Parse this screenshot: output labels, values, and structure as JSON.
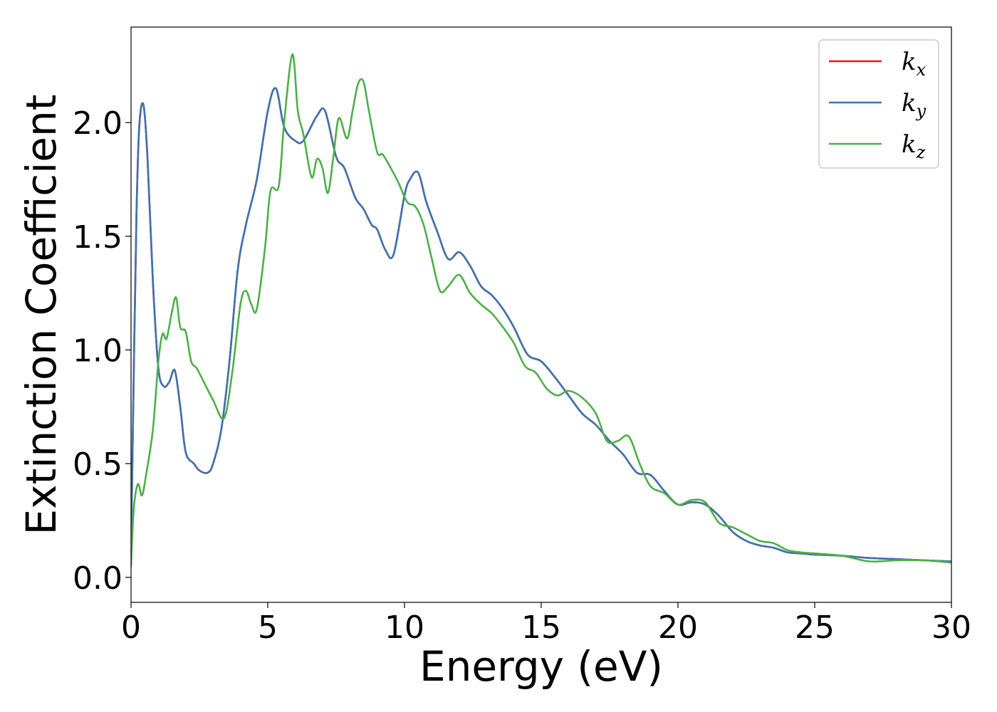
{
  "chart_data": {
    "type": "line",
    "xlabel": "Energy (eV)",
    "ylabel": "Extinction Coefficient",
    "xlim": [
      0,
      30
    ],
    "ylim": [
      -0.11,
      2.42
    ],
    "xticks": [
      "0",
      "5",
      "10",
      "15",
      "20",
      "25",
      "30"
    ],
    "yticks": [
      "0.0",
      "0.5",
      "1.0",
      "1.5",
      "2.0"
    ],
    "grid": false,
    "legend_position": "top-right",
    "series": [
      {
        "name": "k_x",
        "label_main": "k",
        "label_sub": "x",
        "color": "#e41a1c",
        "x": [
          0,
          0.1,
          0.2,
          0.3,
          0.45,
          0.6,
          0.8,
          1.0,
          1.2,
          1.4,
          1.6,
          1.8,
          2.0,
          2.3,
          2.5,
          2.8,
          3.0,
          3.3,
          3.6,
          3.9,
          4.2,
          4.6,
          5.0,
          5.3,
          5.6,
          6.0,
          6.3,
          6.8,
          7.1,
          7.5,
          7.8,
          8.2,
          8.5,
          8.8,
          9.0,
          9.3,
          9.6,
          10.0,
          10.2,
          10.5,
          10.8,
          11.2,
          11.6,
          12.0,
          12.4,
          12.8,
          13.2,
          13.6,
          14.0,
          14.5,
          15.0,
          15.5,
          16.0,
          16.5,
          17.0,
          17.5,
          18.0,
          18.5,
          19.0,
          19.5,
          20.0,
          20.5,
          21.0,
          21.5,
          22.0,
          22.5,
          23.0,
          23.5,
          24.0,
          24.5,
          25.0,
          26.0,
          27.0,
          28.0,
          29.0,
          30.0
        ],
        "y": [
          0.1,
          0.9,
          1.6,
          1.98,
          2.08,
          1.85,
          1.3,
          0.92,
          0.84,
          0.86,
          0.91,
          0.75,
          0.55,
          0.5,
          0.47,
          0.46,
          0.5,
          0.65,
          0.95,
          1.35,
          1.55,
          1.75,
          2.05,
          2.15,
          1.98,
          1.92,
          1.92,
          2.03,
          2.05,
          1.85,
          1.8,
          1.67,
          1.62,
          1.55,
          1.53,
          1.44,
          1.42,
          1.68,
          1.75,
          1.78,
          1.65,
          1.52,
          1.4,
          1.43,
          1.37,
          1.28,
          1.24,
          1.18,
          1.1,
          0.98,
          0.95,
          0.88,
          0.8,
          0.72,
          0.67,
          0.6,
          0.54,
          0.46,
          0.45,
          0.38,
          0.32,
          0.33,
          0.32,
          0.27,
          0.2,
          0.16,
          0.14,
          0.13,
          0.11,
          0.105,
          0.1,
          0.095,
          0.085,
          0.08,
          0.075,
          0.07
        ]
      },
      {
        "name": "k_y",
        "label_main": "k",
        "label_sub": "y",
        "color": "#3c74b0",
        "x": [
          0,
          0.1,
          0.2,
          0.3,
          0.45,
          0.6,
          0.8,
          1.0,
          1.2,
          1.4,
          1.6,
          1.8,
          2.0,
          2.3,
          2.5,
          2.8,
          3.0,
          3.3,
          3.6,
          3.9,
          4.2,
          4.6,
          5.0,
          5.3,
          5.6,
          6.0,
          6.3,
          6.8,
          7.1,
          7.5,
          7.8,
          8.2,
          8.5,
          8.8,
          9.0,
          9.3,
          9.6,
          10.0,
          10.2,
          10.5,
          10.8,
          11.2,
          11.6,
          12.0,
          12.4,
          12.8,
          13.2,
          13.6,
          14.0,
          14.5,
          15.0,
          15.5,
          16.0,
          16.5,
          17.0,
          17.5,
          18.0,
          18.5,
          19.0,
          19.5,
          20.0,
          20.5,
          21.0,
          21.5,
          22.0,
          22.5,
          23.0,
          23.5,
          24.0,
          24.5,
          25.0,
          26.0,
          27.0,
          28.0,
          29.0,
          30.0
        ],
        "y": [
          0.1,
          0.9,
          1.6,
          1.98,
          2.08,
          1.85,
          1.3,
          0.92,
          0.84,
          0.86,
          0.91,
          0.75,
          0.55,
          0.5,
          0.47,
          0.46,
          0.5,
          0.65,
          0.95,
          1.35,
          1.55,
          1.75,
          2.05,
          2.15,
          1.98,
          1.92,
          1.92,
          2.03,
          2.05,
          1.85,
          1.8,
          1.67,
          1.62,
          1.55,
          1.53,
          1.44,
          1.42,
          1.68,
          1.75,
          1.78,
          1.65,
          1.52,
          1.4,
          1.43,
          1.37,
          1.28,
          1.24,
          1.18,
          1.1,
          0.98,
          0.95,
          0.88,
          0.8,
          0.72,
          0.67,
          0.6,
          0.54,
          0.46,
          0.45,
          0.38,
          0.32,
          0.33,
          0.32,
          0.27,
          0.2,
          0.16,
          0.14,
          0.13,
          0.11,
          0.105,
          0.1,
          0.095,
          0.085,
          0.08,
          0.075,
          0.07
        ]
      },
      {
        "name": "k_z",
        "label_main": "k",
        "label_sub": "z",
        "color": "#4daf4a",
        "x": [
          0,
          0.1,
          0.25,
          0.4,
          0.55,
          0.8,
          1.0,
          1.15,
          1.3,
          1.5,
          1.65,
          1.8,
          2.0,
          2.2,
          2.4,
          2.7,
          3.0,
          3.4,
          3.7,
          4.0,
          4.2,
          4.4,
          4.6,
          4.9,
          5.1,
          5.4,
          5.6,
          5.9,
          6.1,
          6.3,
          6.6,
          6.8,
          7.0,
          7.2,
          7.4,
          7.6,
          7.9,
          8.1,
          8.3,
          8.5,
          8.7,
          9.0,
          9.2,
          9.5,
          9.8,
          10.1,
          10.4,
          10.7,
          11.0,
          11.3,
          11.6,
          12.0,
          12.4,
          12.8,
          13.2,
          13.6,
          14.0,
          14.4,
          14.8,
          15.2,
          15.6,
          16.0,
          16.5,
          17.0,
          17.4,
          17.8,
          18.2,
          18.6,
          19.0,
          19.5,
          20.0,
          20.5,
          21.0,
          21.5,
          22.0,
          22.5,
          23.0,
          23.5,
          24.0,
          24.5,
          25.0,
          26.0,
          27.0,
          28.0,
          29.0,
          30.0
        ],
        "y": [
          0.05,
          0.3,
          0.41,
          0.36,
          0.45,
          0.65,
          0.95,
          1.07,
          1.05,
          1.17,
          1.23,
          1.1,
          1.08,
          0.95,
          0.92,
          0.85,
          0.78,
          0.7,
          0.9,
          1.2,
          1.26,
          1.2,
          1.18,
          1.45,
          1.7,
          1.72,
          2.0,
          2.3,
          2.05,
          1.95,
          1.76,
          1.84,
          1.8,
          1.69,
          1.85,
          2.02,
          1.93,
          2.05,
          2.17,
          2.18,
          2.05,
          1.87,
          1.86,
          1.8,
          1.73,
          1.65,
          1.63,
          1.55,
          1.4,
          1.26,
          1.28,
          1.33,
          1.25,
          1.2,
          1.16,
          1.1,
          1.03,
          0.93,
          0.9,
          0.83,
          0.8,
          0.82,
          0.79,
          0.72,
          0.6,
          0.6,
          0.62,
          0.5,
          0.4,
          0.37,
          0.32,
          0.34,
          0.33,
          0.24,
          0.22,
          0.19,
          0.16,
          0.15,
          0.12,
          0.11,
          0.105,
          0.095,
          0.07,
          0.075,
          0.075,
          0.065
        ]
      }
    ]
  }
}
